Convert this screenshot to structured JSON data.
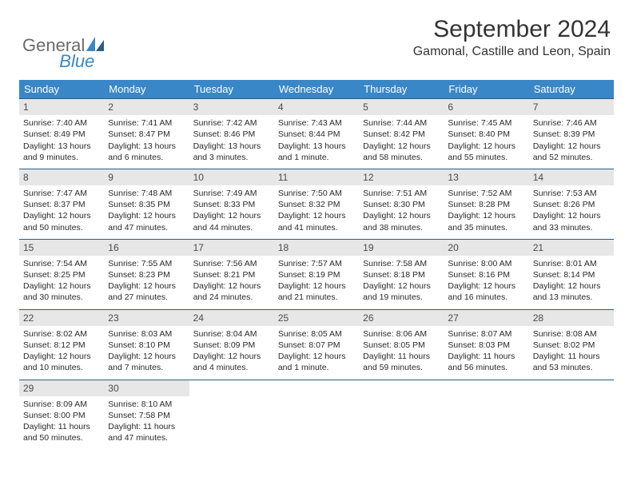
{
  "logo": {
    "word1": "General",
    "word2": "Blue"
  },
  "colors": {
    "header_bg": "#3a87c7",
    "header_text": "#ffffff",
    "row_border": "#2b5d86",
    "datebar_bg": "#e7e7e7",
    "datebar_text": "#4a4a4a",
    "body_text": "#2a2a2a",
    "logo_gray": "#6b6b6b",
    "logo_blue": "#3a87c7",
    "title_color": "#333333"
  },
  "title": "September 2024",
  "subtitle": "Gamonal, Castille and Leon, Spain",
  "daynames": [
    "Sunday",
    "Monday",
    "Tuesday",
    "Wednesday",
    "Thursday",
    "Friday",
    "Saturday"
  ],
  "weeks": [
    [
      {
        "date": "1",
        "sunrise": "Sunrise: 7:40 AM",
        "sunset": "Sunset: 8:49 PM",
        "daylight": "Daylight: 13 hours and 9 minutes."
      },
      {
        "date": "2",
        "sunrise": "Sunrise: 7:41 AM",
        "sunset": "Sunset: 8:47 PM",
        "daylight": "Daylight: 13 hours and 6 minutes."
      },
      {
        "date": "3",
        "sunrise": "Sunrise: 7:42 AM",
        "sunset": "Sunset: 8:46 PM",
        "daylight": "Daylight: 13 hours and 3 minutes."
      },
      {
        "date": "4",
        "sunrise": "Sunrise: 7:43 AM",
        "sunset": "Sunset: 8:44 PM",
        "daylight": "Daylight: 13 hours and 1 minute."
      },
      {
        "date": "5",
        "sunrise": "Sunrise: 7:44 AM",
        "sunset": "Sunset: 8:42 PM",
        "daylight": "Daylight: 12 hours and 58 minutes."
      },
      {
        "date": "6",
        "sunrise": "Sunrise: 7:45 AM",
        "sunset": "Sunset: 8:40 PM",
        "daylight": "Daylight: 12 hours and 55 minutes."
      },
      {
        "date": "7",
        "sunrise": "Sunrise: 7:46 AM",
        "sunset": "Sunset: 8:39 PM",
        "daylight": "Daylight: 12 hours and 52 minutes."
      }
    ],
    [
      {
        "date": "8",
        "sunrise": "Sunrise: 7:47 AM",
        "sunset": "Sunset: 8:37 PM",
        "daylight": "Daylight: 12 hours and 50 minutes."
      },
      {
        "date": "9",
        "sunrise": "Sunrise: 7:48 AM",
        "sunset": "Sunset: 8:35 PM",
        "daylight": "Daylight: 12 hours and 47 minutes."
      },
      {
        "date": "10",
        "sunrise": "Sunrise: 7:49 AM",
        "sunset": "Sunset: 8:33 PM",
        "daylight": "Daylight: 12 hours and 44 minutes."
      },
      {
        "date": "11",
        "sunrise": "Sunrise: 7:50 AM",
        "sunset": "Sunset: 8:32 PM",
        "daylight": "Daylight: 12 hours and 41 minutes."
      },
      {
        "date": "12",
        "sunrise": "Sunrise: 7:51 AM",
        "sunset": "Sunset: 8:30 PM",
        "daylight": "Daylight: 12 hours and 38 minutes."
      },
      {
        "date": "13",
        "sunrise": "Sunrise: 7:52 AM",
        "sunset": "Sunset: 8:28 PM",
        "daylight": "Daylight: 12 hours and 35 minutes."
      },
      {
        "date": "14",
        "sunrise": "Sunrise: 7:53 AM",
        "sunset": "Sunset: 8:26 PM",
        "daylight": "Daylight: 12 hours and 33 minutes."
      }
    ],
    [
      {
        "date": "15",
        "sunrise": "Sunrise: 7:54 AM",
        "sunset": "Sunset: 8:25 PM",
        "daylight": "Daylight: 12 hours and 30 minutes."
      },
      {
        "date": "16",
        "sunrise": "Sunrise: 7:55 AM",
        "sunset": "Sunset: 8:23 PM",
        "daylight": "Daylight: 12 hours and 27 minutes."
      },
      {
        "date": "17",
        "sunrise": "Sunrise: 7:56 AM",
        "sunset": "Sunset: 8:21 PM",
        "daylight": "Daylight: 12 hours and 24 minutes."
      },
      {
        "date": "18",
        "sunrise": "Sunrise: 7:57 AM",
        "sunset": "Sunset: 8:19 PM",
        "daylight": "Daylight: 12 hours and 21 minutes."
      },
      {
        "date": "19",
        "sunrise": "Sunrise: 7:58 AM",
        "sunset": "Sunset: 8:18 PM",
        "daylight": "Daylight: 12 hours and 19 minutes."
      },
      {
        "date": "20",
        "sunrise": "Sunrise: 8:00 AM",
        "sunset": "Sunset: 8:16 PM",
        "daylight": "Daylight: 12 hours and 16 minutes."
      },
      {
        "date": "21",
        "sunrise": "Sunrise: 8:01 AM",
        "sunset": "Sunset: 8:14 PM",
        "daylight": "Daylight: 12 hours and 13 minutes."
      }
    ],
    [
      {
        "date": "22",
        "sunrise": "Sunrise: 8:02 AM",
        "sunset": "Sunset: 8:12 PM",
        "daylight": "Daylight: 12 hours and 10 minutes."
      },
      {
        "date": "23",
        "sunrise": "Sunrise: 8:03 AM",
        "sunset": "Sunset: 8:10 PM",
        "daylight": "Daylight: 12 hours and 7 minutes."
      },
      {
        "date": "24",
        "sunrise": "Sunrise: 8:04 AM",
        "sunset": "Sunset: 8:09 PM",
        "daylight": "Daylight: 12 hours and 4 minutes."
      },
      {
        "date": "25",
        "sunrise": "Sunrise: 8:05 AM",
        "sunset": "Sunset: 8:07 PM",
        "daylight": "Daylight: 12 hours and 1 minute."
      },
      {
        "date": "26",
        "sunrise": "Sunrise: 8:06 AM",
        "sunset": "Sunset: 8:05 PM",
        "daylight": "Daylight: 11 hours and 59 minutes."
      },
      {
        "date": "27",
        "sunrise": "Sunrise: 8:07 AM",
        "sunset": "Sunset: 8:03 PM",
        "daylight": "Daylight: 11 hours and 56 minutes."
      },
      {
        "date": "28",
        "sunrise": "Sunrise: 8:08 AM",
        "sunset": "Sunset: 8:02 PM",
        "daylight": "Daylight: 11 hours and 53 minutes."
      }
    ],
    [
      {
        "date": "29",
        "sunrise": "Sunrise: 8:09 AM",
        "sunset": "Sunset: 8:00 PM",
        "daylight": "Daylight: 11 hours and 50 minutes."
      },
      {
        "date": "30",
        "sunrise": "Sunrise: 8:10 AM",
        "sunset": "Sunset: 7:58 PM",
        "daylight": "Daylight: 11 hours and 47 minutes."
      },
      null,
      null,
      null,
      null,
      null
    ]
  ]
}
